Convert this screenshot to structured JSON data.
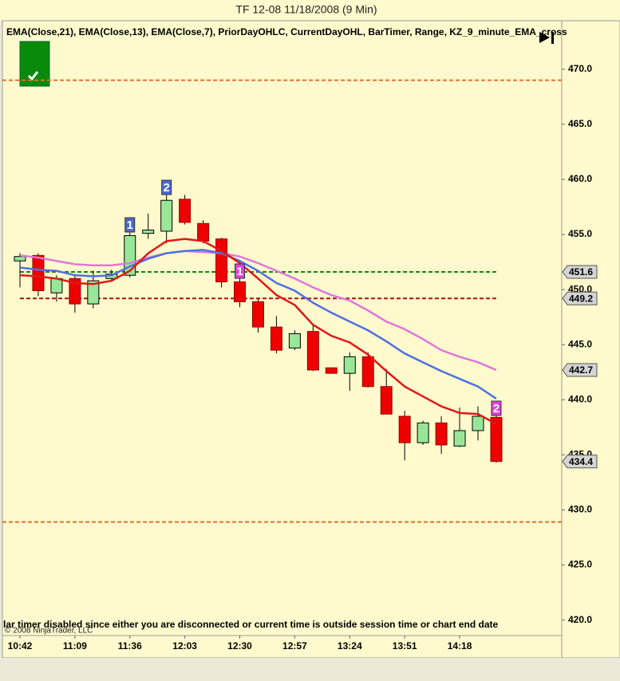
{
  "window_title": "TF 12-08  11/18/2008 (9 Min)",
  "indicator_legend": "EMA(Close,21),  EMA(Close,13),  EMA(Close,7),  PriorDayOHLC,  CurrentDayOHL,  BarTimer,  Range,  KZ_9_minute_EMA_cross",
  "status_message": "lar timer disabled since either you are disconnected or current time is outside session time or chart end date",
  "copyright": "© 2008 NinjaTrader, LLC",
  "chart_data": {
    "type": "candlestick",
    "categories": [
      "10:42",
      null,
      null,
      "11:09",
      null,
      null,
      "11:36",
      null,
      null,
      "12:03",
      null,
      null,
      "12:30",
      null,
      null,
      "12:57",
      null,
      null,
      "13:24",
      null,
      null,
      "13:51",
      null,
      null,
      "14:18",
      null,
      null
    ],
    "open": [
      452.6,
      453.1,
      449.7,
      451.0,
      448.7,
      451.0,
      451.3,
      455.1,
      455.3,
      458.2,
      456.0,
      454.6,
      450.7,
      448.9,
      446.6,
      444.7,
      446.2,
      442.9,
      442.4,
      443.9,
      441.2,
      438.5,
      436.1,
      437.9,
      435.8,
      437.2,
      438.4
    ],
    "high": [
      453.3,
      453.3,
      451.3,
      451.3,
      451.7,
      451.8,
      456.3,
      456.9,
      458.7,
      458.6,
      456.3,
      454.7,
      451.3,
      449.2,
      447.6,
      446.3,
      446.8,
      442.9,
      444.3,
      444.3,
      442.8,
      439.0,
      438.1,
      438.5,
      439.3,
      439.4,
      438.7
    ],
    "low": [
      450.2,
      449.4,
      448.9,
      447.9,
      448.3,
      450.9,
      451.1,
      454.6,
      454.2,
      455.9,
      454.2,
      450.2,
      448.4,
      446.1,
      444.2,
      444.5,
      442.6,
      442.4,
      440.8,
      441.1,
      438.7,
      434.5,
      435.9,
      435.1,
      435.7,
      436.3,
      434.3
    ],
    "close": [
      453.0,
      449.9,
      451.0,
      448.7,
      450.8,
      451.4,
      454.9,
      455.4,
      458.1,
      456.1,
      454.4,
      450.7,
      448.9,
      446.6,
      444.5,
      446.0,
      442.7,
      442.4,
      443.9,
      441.2,
      438.7,
      436.1,
      437.9,
      435.9,
      437.2,
      438.5,
      434.4
    ],
    "up_color": "#98e698",
    "down_color": "#ee0000",
    "series": [
      {
        "color": "#dd77dd",
        "values": [
          453.1,
          452.9,
          452.6,
          452.3,
          452.2,
          452.2,
          452.4,
          452.9,
          453.3,
          453.5,
          453.4,
          453.3,
          453.0,
          452.4,
          451.7,
          451.0,
          450.2,
          449.5,
          449.0,
          448.1,
          447.1,
          446.4,
          445.5,
          444.5,
          443.9,
          443.4,
          442.7
        ]
      },
      {
        "color": "#5070e0",
        "values": [
          452.0,
          451.8,
          451.7,
          451.3,
          451.2,
          451.3,
          452.1,
          452.8,
          453.3,
          453.5,
          453.6,
          453.3,
          452.6,
          451.7,
          450.6,
          449.9,
          448.8,
          447.9,
          447.1,
          446.3,
          445.3,
          444.2,
          443.4,
          442.6,
          441.9,
          441.2,
          440.1
        ]
      },
      {
        "color": "#e01818",
        "values": [
          451.3,
          451.2,
          451.0,
          450.6,
          450.5,
          450.8,
          451.7,
          453.3,
          454.4,
          454.6,
          454.4,
          453.5,
          452.4,
          451.0,
          449.5,
          448.6,
          446.8,
          445.8,
          445.2,
          444.1,
          442.6,
          441.2,
          440.3,
          439.4,
          438.8,
          438.7,
          437.8
        ]
      }
    ],
    "levels": [
      {
        "value": 469.0,
        "color": "#e07030"
      },
      {
        "value": 428.9,
        "color": "#e07030"
      },
      {
        "value": 451.6,
        "color": "#118811"
      },
      {
        "value": 449.2,
        "color": "#aa1111"
      }
    ],
    "price_markers": [
      451.6,
      449.2,
      442.7,
      434.4
    ],
    "signals": [
      "1",
      "2",
      "1",
      "2"
    ],
    "ylim": [
      418.6,
      474.4
    ],
    "yticks": [
      {
        "value": 420,
        "label": "420.0"
      },
      {
        "value": 425,
        "label": "425.0"
      },
      {
        "value": 430,
        "label": "430.0"
      },
      {
        "value": 435,
        "label": "435.0"
      },
      {
        "value": 440,
        "label": "440.0"
      },
      {
        "value": 445,
        "label": "445.0"
      },
      {
        "value": 450,
        "label": "450.0"
      },
      {
        "value": 455,
        "label": "455.0"
      },
      {
        "value": 460,
        "label": "460.0"
      },
      {
        "value": 465,
        "label": "465.0"
      },
      {
        "value": 470,
        "label": "470.0"
      }
    ]
  }
}
